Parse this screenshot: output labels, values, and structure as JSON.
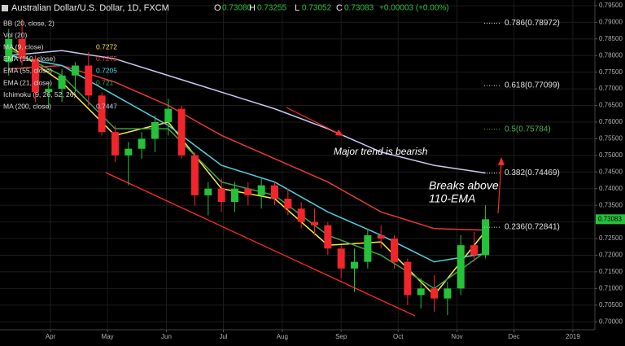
{
  "chart_data": {
    "type": "candlestick",
    "header": {
      "symbol": "Australian Dollar/U.S. Dollar, 1D, FXCM",
      "o_key": "O",
      "o": "0.73080",
      "h_key": "H",
      "h": "0.73255",
      "l_key": "L",
      "l": "0.73052",
      "c_key": "C",
      "c": "0.73083",
      "change": "+0.00003 (+0.00%)"
    },
    "x": [
      -22,
      -15,
      -8,
      -1,
      6,
      13,
      20,
      27,
      34,
      41,
      48,
      55,
      62,
      69,
      76,
      83,
      90,
      97,
      104,
      111,
      118,
      125,
      132,
      139,
      146,
      153,
      160,
      167,
      174,
      181,
      188,
      195,
      202,
      209,
      216,
      223,
      229
    ],
    "open": [
      0.778,
      0.785,
      0.779,
      0.769,
      0.77,
      0.774,
      0.777,
      0.768,
      0.757,
      0.75,
      0.752,
      0.755,
      0.76,
      0.764,
      0.75,
      0.738,
      0.74,
      0.736,
      0.74,
      0.738,
      0.741,
      0.737,
      0.734,
      0.73,
      0.729,
      0.722,
      0.716,
      0.718,
      0.726,
      0.725,
      0.718,
      0.708,
      0.71,
      0.707,
      0.71,
      0.723,
      0.72
    ],
    "high": [
      0.788,
      0.791,
      0.78,
      0.772,
      0.776,
      0.778,
      0.781,
      0.769,
      0.759,
      0.754,
      0.757,
      0.762,
      0.767,
      0.765,
      0.751,
      0.742,
      0.743,
      0.742,
      0.742,
      0.743,
      0.742,
      0.74,
      0.736,
      0.734,
      0.73,
      0.723,
      0.722,
      0.728,
      0.729,
      0.726,
      0.719,
      0.713,
      0.714,
      0.712,
      0.726,
      0.727,
      0.735
    ],
    "low": [
      0.774,
      0.777,
      0.766,
      0.764,
      0.766,
      0.769,
      0.765,
      0.756,
      0.748,
      0.741,
      0.749,
      0.751,
      0.756,
      0.749,
      0.735,
      0.732,
      0.733,
      0.733,
      0.735,
      0.734,
      0.735,
      0.732,
      0.728,
      0.726,
      0.72,
      0.713,
      0.709,
      0.716,
      0.722,
      0.716,
      0.705,
      0.704,
      0.703,
      0.702,
      0.708,
      0.718,
      0.719
    ],
    "close": [
      0.785,
      0.779,
      0.769,
      0.77,
      0.774,
      0.777,
      0.768,
      0.757,
      0.75,
      0.752,
      0.755,
      0.76,
      0.764,
      0.75,
      0.738,
      0.74,
      0.736,
      0.74,
      0.738,
      0.741,
      0.737,
      0.734,
      0.73,
      0.729,
      0.722,
      0.716,
      0.718,
      0.726,
      0.725,
      0.718,
      0.708,
      0.71,
      0.707,
      0.71,
      0.723,
      0.72,
      0.7308
    ],
    "up_color": "#26c13a",
    "down_color": "#f0262b",
    "indicator_x": [
      -22,
      6,
      34,
      62,
      90,
      118,
      146,
      174,
      202,
      229
    ],
    "indicators": [
      {
        "name": "BB (20, close, 2)"
      },
      {
        "name": "Vol (20)"
      },
      {
        "name": "MA (9, close)",
        "color": "#ffeb3b",
        "last": 0.7272,
        "values": [
          0.783,
          0.772,
          0.756,
          0.76,
          0.74,
          0.737,
          0.723,
          0.724,
          0.708,
          0.7272
        ]
      },
      {
        "name": "EMA (110, close)",
        "color": "#e53935",
        "last": 0.7275,
        "values": [
          0.776,
          0.777,
          0.772,
          0.765,
          0.756,
          0.749,
          0.742,
          0.733,
          0.728,
          0.7275
        ]
      },
      {
        "name": "EMA (55, close)",
        "color": "#4dd0e1",
        "last": 0.7205,
        "values": [
          0.78,
          0.777,
          0.768,
          0.759,
          0.747,
          0.742,
          0.733,
          0.726,
          0.718,
          0.7205
        ]
      },
      {
        "name": "EMA (21, close)",
        "color": "#43a047",
        "last": 0.721,
        "values": [
          0.782,
          0.774,
          0.758,
          0.758,
          0.742,
          0.738,
          0.726,
          0.72,
          0.71,
          0.721
        ]
      },
      {
        "name": "Ichimoku (9, 26, 52, 26)"
      },
      {
        "name": "MA (200, close)",
        "color": "#c8c8f0",
        "last": 0.7447,
        "values": [
          0.78,
          0.7815,
          0.779,
          0.774,
          0.769,
          0.764,
          0.758,
          0.751,
          0.747,
          0.7447
        ]
      }
    ],
    "fib_levels": [
      {
        "label": "0.786(0.78972)",
        "value": 0.78972,
        "color": "#e0e0e0"
      },
      {
        "label": "0.618(0.77099)",
        "value": 0.77099,
        "color": "#e0e0e0"
      },
      {
        "label": "0.5(0.75784)",
        "value": 0.75784,
        "color": "#4caf50"
      },
      {
        "label": "0.382(0.74469)",
        "value": 0.74469,
        "color": "#e0e0e0"
      },
      {
        "label": "0.236(0.72841)",
        "value": 0.72841,
        "color": "#e0e0e0"
      }
    ],
    "annotations": [
      "Major trend is bearish",
      "Breaks above",
      "110-EMA"
    ],
    "xlim": [
      -26.6,
      286.6
    ],
    "xticks": [
      {
        "value": 0,
        "label": "Apr"
      },
      {
        "value": 30,
        "label": "May"
      },
      {
        "value": 61,
        "label": "Jun"
      },
      {
        "value": 91,
        "label": "Jul"
      },
      {
        "value": 122,
        "label": "Aug"
      },
      {
        "value": 153,
        "label": "Sep"
      },
      {
        "value": 183,
        "label": "Oct"
      },
      {
        "value": 214,
        "label": "Nov"
      },
      {
        "value": 244,
        "label": "Dec"
      },
      {
        "value": 275,
        "label": "2019"
      }
    ],
    "ylim": [
      0.6976,
      0.7967
    ],
    "yticks": [
      {
        "value": 0.7,
        "label": "0.70000"
      },
      {
        "value": 0.705,
        "label": "0.70500"
      },
      {
        "value": 0.71,
        "label": "0.71000"
      },
      {
        "value": 0.715,
        "label": "0.71500"
      },
      {
        "value": 0.72,
        "label": "0.72000"
      },
      {
        "value": 0.725,
        "label": "0.72500"
      },
      {
        "value": 0.73,
        "label": "0.73000"
      },
      {
        "value": 0.735,
        "label": "0.73500"
      },
      {
        "value": 0.74,
        "label": "0.74000"
      },
      {
        "value": 0.745,
        "label": "0.74500"
      },
      {
        "value": 0.75,
        "label": "0.75000"
      },
      {
        "value": 0.755,
        "label": "0.75500"
      },
      {
        "value": 0.76,
        "label": "0.76000"
      },
      {
        "value": 0.765,
        "label": "0.76500"
      },
      {
        "value": 0.77,
        "label": "0.77000"
      },
      {
        "value": 0.775,
        "label": "0.77500"
      },
      {
        "value": 0.78,
        "label": "0.78000"
      },
      {
        "value": 0.785,
        "label": "0.78500"
      },
      {
        "value": 0.79,
        "label": "0.79000"
      },
      {
        "value": 0.795,
        "label": "0.79500"
      }
    ],
    "grid": true
  }
}
